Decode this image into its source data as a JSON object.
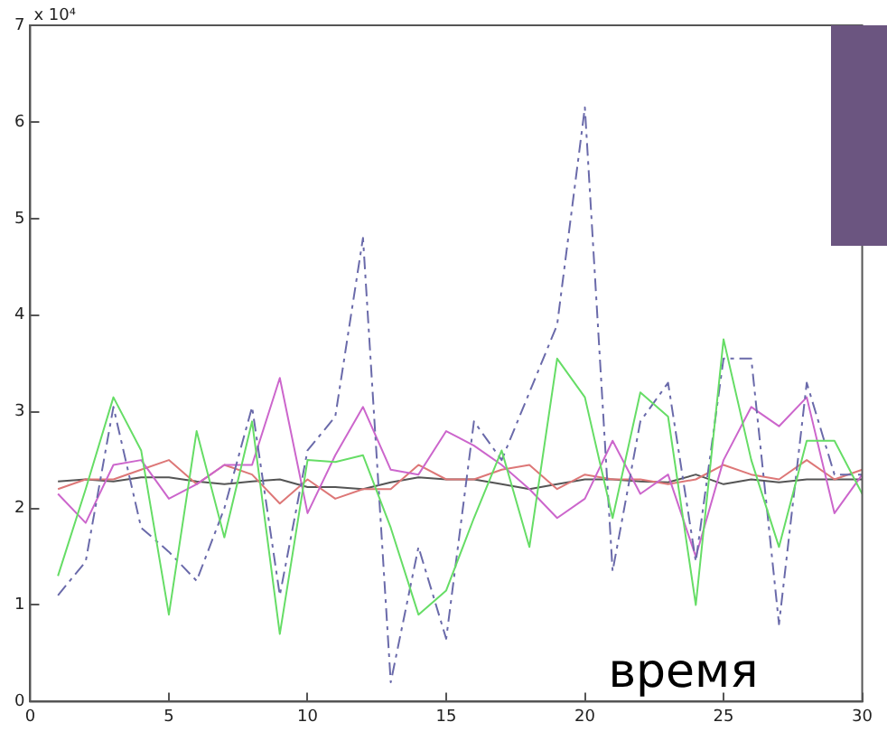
{
  "chart_data": {
    "type": "line",
    "xlabel": "время",
    "annotations": [
      "x 10⁴"
    ],
    "x": [
      1,
      2,
      3,
      4,
      5,
      6,
      7,
      8,
      9,
      10,
      11,
      12,
      13,
      14,
      15,
      16,
      17,
      18,
      19,
      20,
      21,
      22,
      23,
      24,
      25,
      26,
      27,
      28,
      29,
      30
    ],
    "series": [
      {
        "color": "#66dd66",
        "values": [
          1.3,
          2.2,
          3.15,
          2.6,
          0.9,
          2.8,
          1.7,
          2.9,
          0.7,
          2.5,
          2.48,
          2.55,
          1.8,
          0.9,
          1.15,
          1.9,
          2.6,
          1.6,
          3.55,
          3.15,
          1.9,
          3.2,
          2.95,
          1.0,
          3.75,
          2.5,
          1.6,
          2.7,
          2.7,
          2.15
        ]
      },
      {
        "color": "#6a6aaa",
        "line_style": "dashed",
        "values": [
          1.1,
          1.45,
          3.05,
          1.8,
          1.55,
          1.25,
          2.0,
          3.05,
          1.1,
          2.6,
          2.95,
          4.8,
          0.2,
          1.6,
          0.65,
          2.9,
          2.5,
          3.2,
          3.9,
          6.15,
          1.35,
          2.9,
          3.3,
          1.45,
          3.55,
          3.55,
          0.8,
          3.3,
          2.35,
          2.35
        ]
      },
      {
        "color": "#cc66cc",
        "values": [
          2.15,
          1.85,
          2.45,
          2.5,
          2.1,
          2.25,
          2.45,
          2.45,
          3.35,
          1.95,
          2.55,
          3.05,
          2.4,
          2.35,
          2.8,
          2.65,
          2.45,
          2.2,
          1.9,
          2.1,
          2.7,
          2.15,
          2.35,
          1.5,
          2.5,
          3.05,
          2.85,
          3.15,
          1.95,
          2.35
        ]
      },
      {
        "color": "#dd7777",
        "values": [
          2.2,
          2.3,
          2.3,
          2.4,
          2.5,
          2.25,
          2.45,
          2.35,
          2.05,
          2.3,
          2.1,
          2.2,
          2.2,
          2.45,
          2.3,
          2.3,
          2.4,
          2.45,
          2.2,
          2.35,
          2.3,
          2.3,
          2.25,
          2.3,
          2.45,
          2.35,
          2.3,
          2.5,
          2.3,
          2.4
        ]
      },
      {
        "color": "#555555",
        "values": [
          2.28,
          2.3,
          2.28,
          2.32,
          2.32,
          2.28,
          2.25,
          2.28,
          2.3,
          2.22,
          2.22,
          2.2,
          2.27,
          2.32,
          2.3,
          2.3,
          2.25,
          2.2,
          2.25,
          2.3,
          2.3,
          2.28,
          2.27,
          2.35,
          2.25,
          2.3,
          2.27,
          2.3,
          2.3,
          2.3
        ]
      }
    ],
    "xlim": [
      0,
      30
    ],
    "xticks": [
      0,
      5,
      10,
      15,
      20,
      25,
      30
    ],
    "ylim": [
      0,
      7
    ],
    "yticks": [
      0,
      1,
      2,
      3,
      4,
      5,
      6,
      7
    ],
    "grid": false,
    "legend": false,
    "marker": "none"
  }
}
